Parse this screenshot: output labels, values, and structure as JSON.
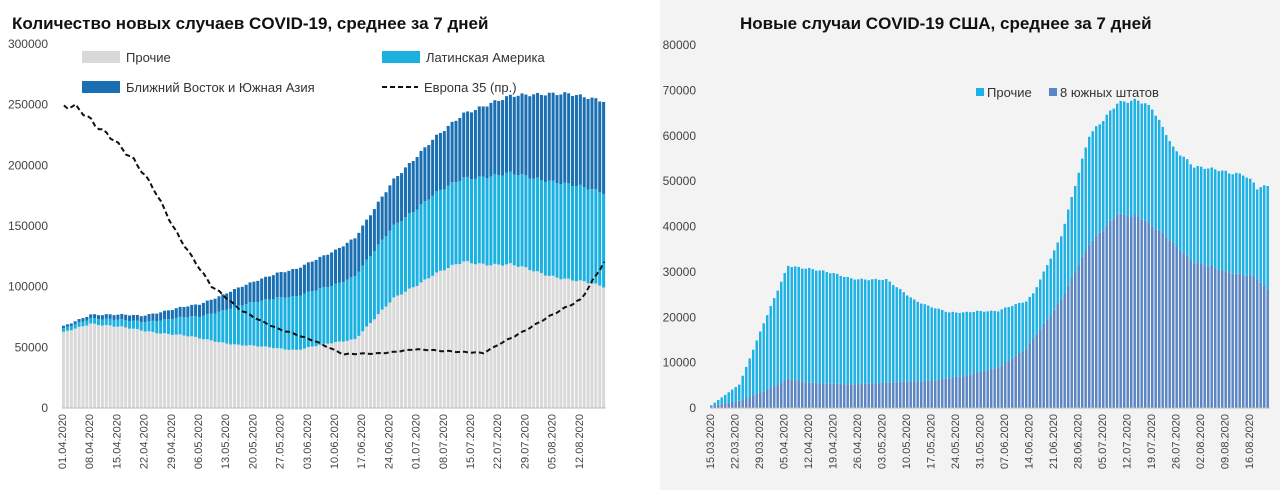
{
  "colors": {
    "other": "#d9d9d9",
    "latam": "#1ab0e0",
    "mideast": "#1a6fb3",
    "europe": "#111111",
    "us_other": "#1bb2e6",
    "us_south": "#5b86c5"
  },
  "chart_data": [
    {
      "type": "bar",
      "stacked": true,
      "title": "Количество новых случаев COVID-19, среднее за 7 дней",
      "ylim": [
        0,
        300000
      ],
      "y2lim": null,
      "yticks": [
        "0",
        "50000",
        "100000",
        "150000",
        "200000",
        "250000",
        "300000"
      ],
      "xticks": [
        "01.04.2020",
        "08.04.2020",
        "15.04.2020",
        "22.04.2020",
        "29.04.2020",
        "06.05.2020",
        "13.05.2020",
        "20.05.2020",
        "27.05.2020",
        "03.06.2020",
        "10.06.2020",
        "17.06.2020",
        "24.06.2020",
        "01.07.2020",
        "08.07.2020",
        "15.07.2020",
        "22.07.2020",
        "29.07.2020",
        "05.08.2020",
        "12.08.2020"
      ],
      "legend": [
        "Прочие",
        "Латинская Америка",
        "Ближний Восток и Южная Азия",
        "Европа 35 (пр.)"
      ],
      "legend_placement": "top",
      "x_start": "01.04.2020",
      "days": 140,
      "series": [
        {
          "name": "Прочие",
          "kind": "bar",
          "keypoints": [
            [
              0,
              62000
            ],
            [
              7,
              70000
            ],
            [
              20,
              64000
            ],
            [
              30,
              60000
            ],
            [
              45,
              52000
            ],
            [
              60,
              48000
            ],
            [
              75,
              57000
            ],
            [
              85,
              90000
            ],
            [
              95,
              110000
            ],
            [
              103,
              120000
            ],
            [
              115,
              118000
            ],
            [
              122,
              112000
            ],
            [
              130,
              106000
            ],
            [
              139,
              100000
            ]
          ]
        },
        {
          "name": "Латинская Америка",
          "kind": "bar",
          "keypoints": [
            [
              0,
              3000
            ],
            [
              20,
              7000
            ],
            [
              35,
              18000
            ],
            [
              45,
              32000
            ],
            [
              55,
              42000
            ],
            [
              70,
              48000
            ],
            [
              85,
              60000
            ],
            [
              100,
              68000
            ],
            [
              115,
              75000
            ],
            [
              125,
              78000
            ],
            [
              139,
              78000
            ]
          ]
        },
        {
          "name": "Ближний Восток и Южная Азия",
          "kind": "bar",
          "keypoints": [
            [
              0,
              2000
            ],
            [
              20,
              5000
            ],
            [
              35,
              10000
            ],
            [
              45,
              15000
            ],
            [
              55,
              20000
            ],
            [
              70,
              28000
            ],
            [
              85,
              38000
            ],
            [
              100,
              50000
            ],
            [
              110,
              60000
            ],
            [
              120,
              68000
            ],
            [
              130,
              75000
            ],
            [
              139,
              75000
            ]
          ]
        },
        {
          "name": "Европа 35 (пр.)",
          "kind": "line",
          "axis": "secondary",
          "keypoints": [
            [
              0,
              250000
            ],
            [
              3,
              248000
            ],
            [
              8,
              232000
            ],
            [
              13,
              222000
            ],
            [
              18,
              205000
            ],
            [
              23,
              180000
            ],
            [
              28,
              150000
            ],
            [
              33,
              125000
            ],
            [
              38,
              100000
            ],
            [
              45,
              82000
            ],
            [
              55,
              65000
            ],
            [
              65,
              55000
            ],
            [
              72,
              44000
            ],
            [
              80,
              45000
            ],
            [
              90,
              48000
            ],
            [
              100,
              47000
            ],
            [
              108,
              45000
            ],
            [
              115,
              58000
            ],
            [
              125,
              75000
            ],
            [
              133,
              90000
            ],
            [
              139,
              120000
            ]
          ]
        }
      ]
    },
    {
      "type": "bar",
      "stacked": true,
      "title": "Новые случаи COVID-19  США, среднее за 7 дней",
      "ylim": [
        0,
        40000
      ],
      "y2lim": [
        0,
        80000
      ],
      "yticks": [
        "0",
        "5000",
        "10000",
        "15000",
        "20000",
        "25000",
        "30000",
        "35000",
        "40000"
      ],
      "y2ticks": [
        "0",
        "10000",
        "20000",
        "30000",
        "40000",
        "50000",
        "60000",
        "70000",
        "80000"
      ],
      "xticks": [
        "15.03.2020",
        "22.03.2020",
        "29.03.2020",
        "05.04.2020",
        "12.04.2020",
        "19.04.2020",
        "26.04.2020",
        "03.05.2020",
        "10.05.2020",
        "17.05.2020",
        "24.05.2020",
        "31.05.2020",
        "07.06.2020",
        "14.06.2020",
        "21.06.2020",
        "28.06.2020",
        "05.07.2020",
        "12.07.2020",
        "19.07.2020",
        "26.07.2020",
        "02.08.2020",
        "09.08.2020",
        "16.08.2020"
      ],
      "legend": [
        "Прочие",
        "8 южных штатов"
      ],
      "legend_placement": "top-right",
      "x_start": "15.03.2020",
      "days": 160,
      "series": [
        {
          "name": "8 южных штатов",
          "kind": "bar",
          "keypoints": [
            [
              0,
              200
            ],
            [
              8,
              800
            ],
            [
              16,
              2000
            ],
            [
              22,
              3200
            ],
            [
              28,
              2800
            ],
            [
              40,
              2600
            ],
            [
              50,
              2800
            ],
            [
              62,
              3000
            ],
            [
              72,
              3500
            ],
            [
              82,
              4500
            ],
            [
              90,
              6500
            ],
            [
              100,
              12000
            ],
            [
              108,
              18000
            ],
            [
              116,
              21500
            ],
            [
              122,
              21000
            ],
            [
              130,
              19000
            ],
            [
              138,
              16000
            ],
            [
              148,
              15000
            ],
            [
              155,
              14500
            ],
            [
              159,
              13000
            ]
          ]
        },
        {
          "name": "Прочие",
          "kind": "bar",
          "keypoints": [
            [
              0,
              100
            ],
            [
              8,
              1800
            ],
            [
              15,
              7500
            ],
            [
              22,
              12500
            ],
            [
              28,
              12600
            ],
            [
              40,
              11700
            ],
            [
              50,
              11300
            ],
            [
              58,
              9000
            ],
            [
              68,
              7200
            ],
            [
              76,
              6800
            ],
            [
              84,
              6000
            ],
            [
              92,
              5000
            ],
            [
              100,
              7000
            ],
            [
              108,
              12000
            ],
            [
              116,
              12200
            ],
            [
              122,
              12800
            ],
            [
              126,
              13000
            ],
            [
              132,
              10500
            ],
            [
              138,
              10500
            ],
            [
              145,
              11000
            ],
            [
              152,
              11000
            ],
            [
              156,
              10000
            ],
            [
              159,
              11500
            ]
          ]
        }
      ]
    }
  ]
}
